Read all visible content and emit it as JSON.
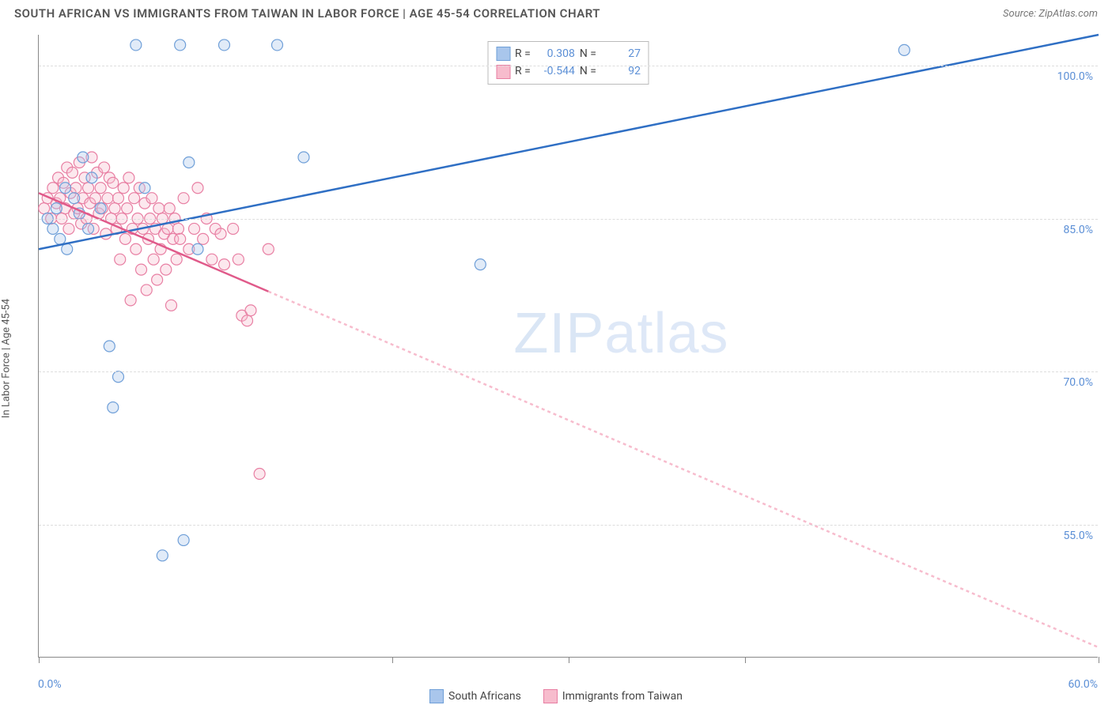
{
  "header": {
    "title": "SOUTH AFRICAN VS IMMIGRANTS FROM TAIWAN IN LABOR FORCE | AGE 45-54 CORRELATION CHART",
    "source": "Source: ZipAtlas.com"
  },
  "chart": {
    "type": "scatter",
    "ylabel": "In Labor Force | Age 45-54",
    "background_color": "#ffffff",
    "grid_color": "#dddddd",
    "axis_color": "#888888",
    "tick_label_color": "#5b8fd6",
    "tick_fontsize": 14,
    "title_fontsize": 15,
    "xlim": [
      0,
      60
    ],
    "ylim": [
      42,
      103
    ],
    "yticks": [
      55.0,
      70.0,
      85.0,
      100.0
    ],
    "ytick_labels": [
      "55.0%",
      "70.0%",
      "85.0%",
      "100.0%"
    ],
    "xtick_positions": [
      0,
      20,
      30,
      40,
      60
    ],
    "xtick_left_label": "0.0%",
    "xtick_right_label": "60.0%",
    "marker_radius": 7,
    "marker_stroke_width": 1.2,
    "marker_fill_opacity": 0.35,
    "line_width": 2.5,
    "series": [
      {
        "key": "south_africans",
        "label": "South Africans",
        "color_fill": "#a9c6ec",
        "color_stroke": "#6f9fd8",
        "line_color": "#2f6fc4",
        "R": "0.308",
        "N": "27",
        "trend": {
          "x1": 0,
          "y1": 82.0,
          "x2": 60,
          "y2": 103.0,
          "dash": "none"
        },
        "points": [
          [
            0.5,
            85
          ],
          [
            0.8,
            84
          ],
          [
            1.0,
            86
          ],
          [
            1.2,
            83
          ],
          [
            1.5,
            88
          ],
          [
            1.6,
            82
          ],
          [
            2.0,
            87
          ],
          [
            2.3,
            85.5
          ],
          [
            2.5,
            91
          ],
          [
            2.8,
            84
          ],
          [
            3.0,
            89
          ],
          [
            3.5,
            86
          ],
          [
            4.0,
            72.5
          ],
          [
            4.2,
            66.5
          ],
          [
            4.5,
            69.5
          ],
          [
            5.5,
            102
          ],
          [
            6.0,
            88
          ],
          [
            7.0,
            52
          ],
          [
            8.0,
            102
          ],
          [
            8.2,
            53.5
          ],
          [
            8.5,
            90.5
          ],
          [
            9.0,
            82
          ],
          [
            10.5,
            102
          ],
          [
            13.5,
            102
          ],
          [
            15.0,
            91
          ],
          [
            25.0,
            80.5
          ],
          [
            49.0,
            101.5
          ]
        ]
      },
      {
        "key": "immigrants_taiwan",
        "label": "Immigrants from Taiwan",
        "color_fill": "#f7bccd",
        "color_stroke": "#e87fa3",
        "line_color": "#e05a8a",
        "R": "-0.544",
        "N": "92",
        "trend": {
          "x1": 0,
          "y1": 87.5,
          "x2": 60,
          "y2": 43.0,
          "dash": "4 4",
          "solid_until": 13
        },
        "points": [
          [
            0.3,
            86
          ],
          [
            0.5,
            87
          ],
          [
            0.7,
            85
          ],
          [
            0.8,
            88
          ],
          [
            1.0,
            86.5
          ],
          [
            1.1,
            89
          ],
          [
            1.2,
            87
          ],
          [
            1.3,
            85
          ],
          [
            1.4,
            88.5
          ],
          [
            1.5,
            86
          ],
          [
            1.6,
            90
          ],
          [
            1.7,
            84
          ],
          [
            1.8,
            87.5
          ],
          [
            1.9,
            89.5
          ],
          [
            2.0,
            85.5
          ],
          [
            2.1,
            88
          ],
          [
            2.2,
            86
          ],
          [
            2.3,
            90.5
          ],
          [
            2.4,
            84.5
          ],
          [
            2.5,
            87
          ],
          [
            2.6,
            89
          ],
          [
            2.7,
            85
          ],
          [
            2.8,
            88
          ],
          [
            2.9,
            86.5
          ],
          [
            3.0,
            91
          ],
          [
            3.1,
            84
          ],
          [
            3.2,
            87
          ],
          [
            3.3,
            89.5
          ],
          [
            3.4,
            85.5
          ],
          [
            3.5,
            88
          ],
          [
            3.6,
            86
          ],
          [
            3.7,
            90
          ],
          [
            3.8,
            83.5
          ],
          [
            3.9,
            87
          ],
          [
            4.0,
            89
          ],
          [
            4.1,
            85
          ],
          [
            4.2,
            88.5
          ],
          [
            4.3,
            86
          ],
          [
            4.4,
            84
          ],
          [
            4.5,
            87
          ],
          [
            4.6,
            81
          ],
          [
            4.7,
            85
          ],
          [
            4.8,
            88
          ],
          [
            4.9,
            83
          ],
          [
            5.0,
            86
          ],
          [
            5.1,
            89
          ],
          [
            5.2,
            77
          ],
          [
            5.3,
            84
          ],
          [
            5.4,
            87
          ],
          [
            5.5,
            82
          ],
          [
            5.6,
            85
          ],
          [
            5.7,
            88
          ],
          [
            5.8,
            80
          ],
          [
            5.9,
            84
          ],
          [
            6.0,
            86.5
          ],
          [
            6.1,
            78
          ],
          [
            6.2,
            83
          ],
          [
            6.3,
            85
          ],
          [
            6.4,
            87
          ],
          [
            6.5,
            81
          ],
          [
            6.6,
            84
          ],
          [
            6.7,
            79
          ],
          [
            6.8,
            86
          ],
          [
            6.9,
            82
          ],
          [
            7.0,
            85
          ],
          [
            7.1,
            83.5
          ],
          [
            7.2,
            80
          ],
          [
            7.3,
            84
          ],
          [
            7.4,
            86
          ],
          [
            7.5,
            76.5
          ],
          [
            7.6,
            83
          ],
          [
            7.7,
            85
          ],
          [
            7.8,
            81
          ],
          [
            7.9,
            84
          ],
          [
            8.0,
            83
          ],
          [
            8.2,
            87
          ],
          [
            8.5,
            82
          ],
          [
            8.8,
            84
          ],
          [
            9.0,
            88
          ],
          [
            9.3,
            83
          ],
          [
            9.5,
            85
          ],
          [
            9.8,
            81
          ],
          [
            10.0,
            84
          ],
          [
            10.3,
            83.5
          ],
          [
            10.5,
            80.5
          ],
          [
            11.0,
            84
          ],
          [
            11.3,
            81
          ],
          [
            11.5,
            75.5
          ],
          [
            11.8,
            75
          ],
          [
            12.0,
            76
          ],
          [
            12.5,
            60
          ],
          [
            13.0,
            82
          ]
        ]
      }
    ],
    "legend_stats": {
      "R_label": "R =",
      "N_label": "N ="
    },
    "watermark": {
      "bold": "ZIP",
      "thin": "atlas"
    }
  }
}
